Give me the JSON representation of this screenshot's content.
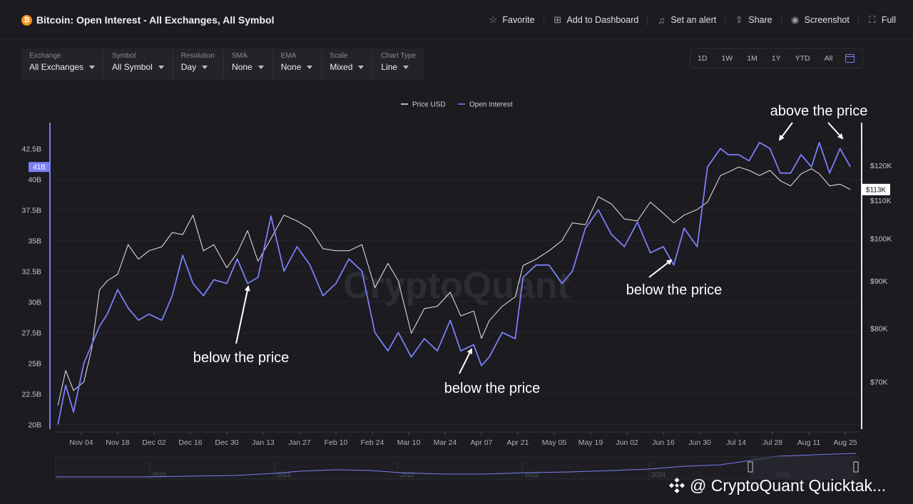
{
  "header": {
    "title": "Bitcoin: Open Interest - All Exchanges, All Symbol",
    "actions": [
      {
        "label": "Favorite",
        "icon": "star-icon"
      },
      {
        "label": "Add to Dashboard",
        "icon": "dashboard-add-icon"
      },
      {
        "label": "Set an alert",
        "icon": "bell-icon"
      },
      {
        "label": "Share",
        "icon": "share-icon"
      },
      {
        "label": "Screenshot",
        "icon": "camera-icon"
      },
      {
        "label": "Full",
        "icon": "fullscreen-icon"
      }
    ]
  },
  "controls": [
    {
      "label": "Exchange",
      "value": "All Exchanges"
    },
    {
      "label": "Symbol",
      "value": "All Symbol"
    },
    {
      "label": "Resolution",
      "value": "Day"
    },
    {
      "label": "SMA",
      "value": "None"
    },
    {
      "label": "EMA",
      "value": "None"
    },
    {
      "label": "Scale",
      "value": "Mixed"
    },
    {
      "label": "Chart Type",
      "value": "Line"
    }
  ],
  "ranges": [
    "1D",
    "1W",
    "1M",
    "1Y",
    "YTD",
    "All"
  ],
  "colors": {
    "price": "#e9e9ee",
    "open_interest": "#7b7ff6",
    "background": "#1b1b20"
  },
  "credit": "@ CryptoQuant Quicktak...",
  "chart_data": {
    "type": "line",
    "legend": [
      "Price USD",
      "Open Interest"
    ],
    "legend_position": "top-center",
    "watermark": "CryptoQuant",
    "x_ticks": [
      "Nov 04",
      "Nov 18",
      "Dec 02",
      "Dec 16",
      "Dec 30",
      "Jan 13",
      "Jan 27",
      "Feb 10",
      "Feb 24",
      "Mar 10",
      "Mar 24",
      "Apr 07",
      "Apr 21",
      "May 05",
      "May 19",
      "Jun 02",
      "Jun 16",
      "Jun 30",
      "Jul 14",
      "Jul 28",
      "Aug 11",
      "Aug 25"
    ],
    "y_left": {
      "ticks": [
        "20B",
        "22.5B",
        "25B",
        "27.5B",
        "30B",
        "32.5B",
        "35B",
        "37.5B",
        "40B",
        "42.5B"
      ],
      "range": [
        19.5,
        44.5
      ],
      "current_label": "41B"
    },
    "y_right": {
      "ticks": [
        "$70K",
        "$80K",
        "$90K",
        "$100K",
        "$110K",
        "$120K"
      ],
      "scale": "log",
      "range": [
        62000,
        133000
      ],
      "current_label": "$113K"
    },
    "series": [
      {
        "name": "Open Interest",
        "axis": "left",
        "unit": "B USD",
        "x": [
          "2024-10-26",
          "2024-10-29",
          "2024-11-01",
          "2024-11-05",
          "2024-11-08",
          "2024-11-11",
          "2024-11-14",
          "2024-11-18",
          "2024-11-22",
          "2024-11-26",
          "2024-11-30",
          "2024-12-05",
          "2024-12-09",
          "2024-12-13",
          "2024-12-17",
          "2024-12-21",
          "2024-12-25",
          "2024-12-30",
          "2025-01-03",
          "2025-01-07",
          "2025-01-11",
          "2025-01-16",
          "2025-01-21",
          "2025-01-26",
          "2025-01-31",
          "2025-02-05",
          "2025-02-10",
          "2025-02-15",
          "2025-02-20",
          "2025-02-25",
          "2025-03-02",
          "2025-03-06",
          "2025-03-11",
          "2025-03-16",
          "2025-03-21",
          "2025-03-26",
          "2025-03-30",
          "2025-04-04",
          "2025-04-07",
          "2025-04-10",
          "2025-04-15",
          "2025-04-20",
          "2025-04-23",
          "2025-04-28",
          "2025-05-03",
          "2025-05-08",
          "2025-05-12",
          "2025-05-17",
          "2025-05-22",
          "2025-05-27",
          "2025-06-01",
          "2025-06-06",
          "2025-06-11",
          "2025-06-16",
          "2025-06-20",
          "2025-06-24",
          "2025-06-29",
          "2025-07-03",
          "2025-07-08",
          "2025-07-11",
          "2025-07-15",
          "2025-07-19",
          "2025-07-23",
          "2025-07-27",
          "2025-07-31",
          "2025-08-04",
          "2025-08-08",
          "2025-08-12",
          "2025-08-15",
          "2025-08-19",
          "2025-08-23",
          "2025-08-27"
        ],
        "values": [
          20.0,
          23.2,
          21.0,
          25.0,
          26.5,
          28.0,
          29.0,
          31.0,
          29.5,
          28.5,
          29.0,
          28.5,
          30.5,
          33.8,
          31.5,
          30.5,
          31.8,
          31.5,
          33.5,
          31.5,
          32.0,
          37.0,
          32.5,
          34.5,
          33.0,
          30.5,
          31.5,
          33.5,
          32.5,
          27.5,
          26.0,
          27.5,
          25.5,
          27.0,
          26.0,
          28.5,
          26.0,
          26.5,
          24.8,
          25.5,
          27.5,
          27.0,
          32.0,
          33.0,
          33.0,
          31.5,
          32.5,
          36.0,
          37.5,
          35.5,
          34.5,
          36.5,
          34.0,
          34.5,
          33.0,
          36.0,
          34.5,
          41.0,
          42.5,
          42.0,
          42.0,
          41.5,
          43.0,
          42.5,
          40.5,
          40.5,
          42.0,
          41.0,
          43.0,
          40.5,
          42.5,
          41.0
        ]
      },
      {
        "name": "Price USD",
        "axis": "right",
        "unit": "USD",
        "x": [
          "2024-10-26",
          "2024-10-29",
          "2024-11-01",
          "2024-11-05",
          "2024-11-08",
          "2024-11-11",
          "2024-11-14",
          "2024-11-18",
          "2024-11-22",
          "2024-11-26",
          "2024-11-30",
          "2024-12-05",
          "2024-12-09",
          "2024-12-13",
          "2024-12-17",
          "2024-12-21",
          "2024-12-25",
          "2024-12-30",
          "2025-01-03",
          "2025-01-07",
          "2025-01-11",
          "2025-01-16",
          "2025-01-21",
          "2025-01-26",
          "2025-01-31",
          "2025-02-05",
          "2025-02-10",
          "2025-02-15",
          "2025-02-20",
          "2025-02-25",
          "2025-03-02",
          "2025-03-06",
          "2025-03-11",
          "2025-03-16",
          "2025-03-21",
          "2025-03-26",
          "2025-03-30",
          "2025-04-04",
          "2025-04-07",
          "2025-04-10",
          "2025-04-15",
          "2025-04-20",
          "2025-04-23",
          "2025-04-28",
          "2025-05-03",
          "2025-05-08",
          "2025-05-12",
          "2025-05-17",
          "2025-05-22",
          "2025-05-27",
          "2025-06-01",
          "2025-06-06",
          "2025-06-11",
          "2025-06-16",
          "2025-06-20",
          "2025-06-24",
          "2025-06-29",
          "2025-07-03",
          "2025-07-08",
          "2025-07-11",
          "2025-07-15",
          "2025-07-19",
          "2025-07-23",
          "2025-07-27",
          "2025-07-31",
          "2025-08-04",
          "2025-08-08",
          "2025-08-12",
          "2025-08-15",
          "2025-08-19",
          "2025-08-23",
          "2025-08-27"
        ],
        "values": [
          66000,
          72000,
          68500,
          70000,
          76000,
          88000,
          90000,
          91500,
          98500,
          95000,
          97000,
          98000,
          101500,
          101000,
          106000,
          97000,
          98500,
          93000,
          96500,
          102000,
          94500,
          100000,
          106000,
          104500,
          102500,
          97500,
          97000,
          97000,
          98500,
          88500,
          94000,
          90000,
          79000,
          84000,
          84500,
          87500,
          82500,
          83500,
          78000,
          81500,
          84500,
          86500,
          93500,
          95000,
          97000,
          99500,
          104000,
          103500,
          111000,
          109000,
          105000,
          104500,
          109500,
          106500,
          104000,
          106000,
          107500,
          109500,
          117000,
          118000,
          119500,
          118500,
          117000,
          118500,
          115500,
          114000,
          117500,
          119000,
          117500,
          114000,
          114500,
          113000
        ]
      }
    ],
    "annotations": [
      {
        "text": "below the price"
      },
      {
        "text": "below the price"
      },
      {
        "text": "below the price"
      },
      {
        "text": "above the price"
      }
    ],
    "navigator_years": [
      "2020",
      "2021",
      "2022",
      "2023",
      "2024",
      "2025"
    ]
  }
}
